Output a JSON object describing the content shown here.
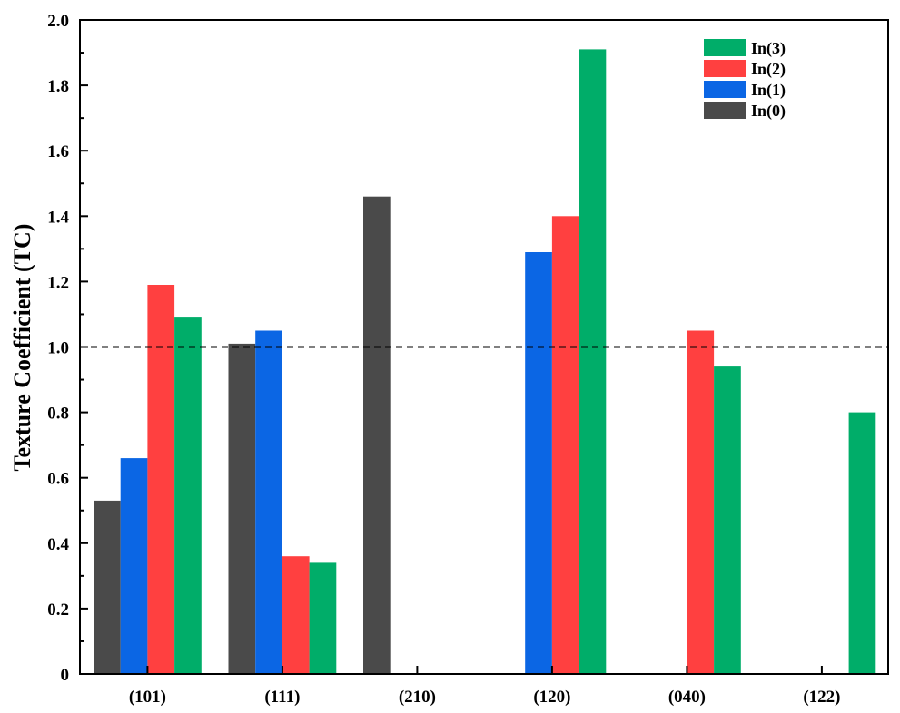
{
  "chart_data": {
    "type": "bar",
    "ylabel": "Texture Coefficient (TC)",
    "xlabel": "",
    "ylim": [
      0,
      2.0
    ],
    "yticks": [
      "0",
      "0.2",
      "0.4",
      "0.6",
      "0.8",
      "1.0",
      "1.2",
      "1.4",
      "1.6",
      "1.8",
      "2.0"
    ],
    "categories": [
      "(101)",
      "(111)",
      "(210)",
      "(120)",
      "(040)",
      "(122)"
    ],
    "series": [
      {
        "name": "In(0)",
        "color": "#4a4a4a",
        "values": [
          0.53,
          1.01,
          1.46,
          0,
          0,
          0
        ]
      },
      {
        "name": "In(1)",
        "color": "#0b66e4",
        "values": [
          0.66,
          1.05,
          0,
          1.29,
          0,
          0
        ]
      },
      {
        "name": "In(2)",
        "color": "#ff4040",
        "values": [
          1.19,
          0.36,
          0,
          1.4,
          1.05,
          0
        ]
      },
      {
        "name": "In(3)",
        "color": "#00ad69",
        "values": [
          1.09,
          0.34,
          0,
          1.91,
          0.94,
          0.8
        ]
      }
    ],
    "legend_order": [
      "In(3)",
      "In(2)",
      "In(1)",
      "In(0)"
    ],
    "legend_position": "top-right",
    "reference_line": {
      "y": 1.0,
      "style": "dashed"
    },
    "grid": false
  }
}
